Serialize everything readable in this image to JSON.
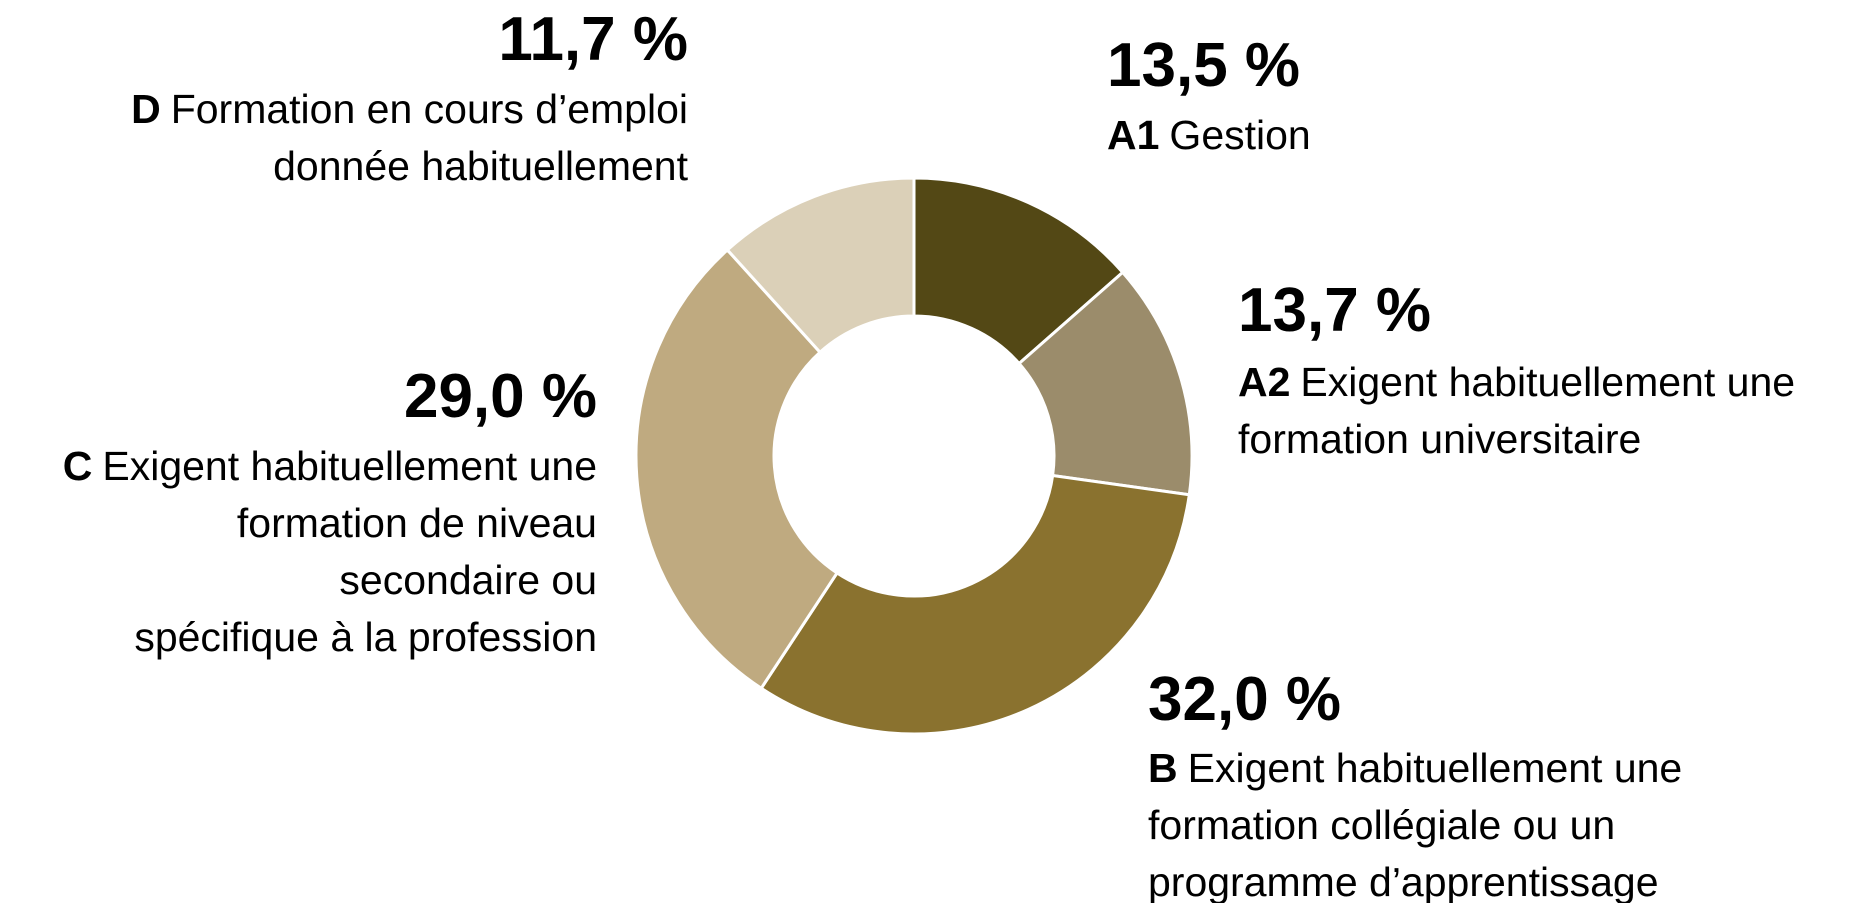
{
  "chart_data": {
    "type": "donut",
    "codes": [
      "A1",
      "A2",
      "B",
      "C",
      "D"
    ],
    "categories": [
      [
        "Gestion"
      ],
      [
        "Exigent habituellement une",
        "formation universitaire"
      ],
      [
        "Exigent habituellement une",
        "formation collégiale ou un",
        "programme d’apprentissage"
      ],
      [
        "Exigent habituellement une",
        "formation de niveau",
        "secondaire ou",
        "spécifique à la profession"
      ],
      [
        "Formation en cours d’emploi",
        "donnée habituellement"
      ]
    ],
    "values": [
      13.5,
      13.7,
      32.0,
      29.0,
      11.7
    ],
    "value_labels": [
      "13,5 %",
      "13,7 %",
      "32,0 %",
      "29,0 %",
      "11,7 %"
    ],
    "colors": [
      "#534815",
      "#9b8c6b",
      "#8a722f",
      "#bfaa80",
      "#dbd0b8"
    ]
  }
}
